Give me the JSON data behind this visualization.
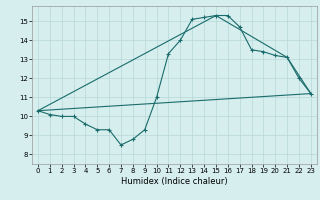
{
  "title": "",
  "xlabel": "Humidex (Indice chaleur)",
  "background_color": "#d6eeee",
  "grid_color": "#b8d8d8",
  "line_color": "#1a6b6b",
  "xlim": [
    -0.5,
    23.5
  ],
  "ylim": [
    7.5,
    15.8
  ],
  "yticks": [
    8,
    9,
    10,
    11,
    12,
    13,
    14,
    15
  ],
  "xticks": [
    0,
    1,
    2,
    3,
    4,
    5,
    6,
    7,
    8,
    9,
    10,
    11,
    12,
    13,
    14,
    15,
    16,
    17,
    18,
    19,
    20,
    21,
    22,
    23
  ],
  "line1_x": [
    0,
    1,
    2,
    3,
    4,
    5,
    6,
    7,
    8,
    9,
    10,
    11,
    12,
    13,
    14,
    15,
    16,
    17,
    18,
    19,
    20,
    21,
    22,
    23
  ],
  "line1_y": [
    10.3,
    10.1,
    10.0,
    10.0,
    9.6,
    9.3,
    9.3,
    8.5,
    8.8,
    9.3,
    11.0,
    13.3,
    14.0,
    15.1,
    15.2,
    15.3,
    15.3,
    14.7,
    13.5,
    13.4,
    13.2,
    13.1,
    12.0,
    11.2
  ],
  "line2_x": [
    0,
    15,
    21,
    23
  ],
  "line2_y": [
    10.3,
    15.3,
    13.1,
    11.2
  ],
  "line3_x": [
    0,
    23
  ],
  "line3_y": [
    10.3,
    11.2
  ]
}
